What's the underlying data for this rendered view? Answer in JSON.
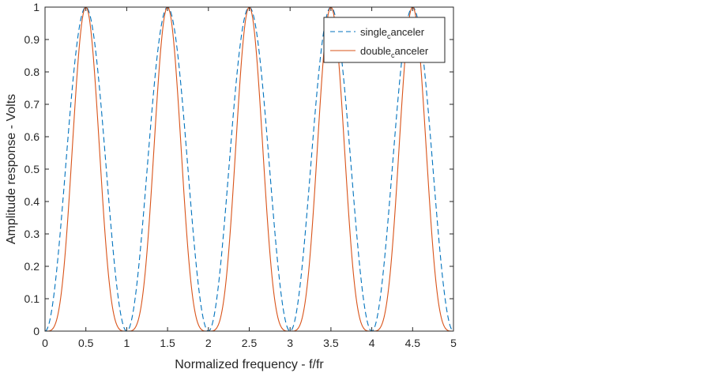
{
  "chart_data": {
    "type": "line",
    "xlabel": "Normalized frequency - f/fr",
    "ylabel": "Amplitude response - Volts",
    "xlim": [
      0,
      5
    ],
    "ylim": [
      0,
      1
    ],
    "x_ticks": [
      "0",
      "0.5",
      "1",
      "1.5",
      "2",
      "2.5",
      "3",
      "3.5",
      "4",
      "4.5",
      "5"
    ],
    "y_ticks": [
      "0",
      "0.1",
      "0.2",
      "0.3",
      "0.4",
      "0.5",
      "0.6",
      "0.7",
      "0.8",
      "0.9",
      "1"
    ],
    "grid": false,
    "legend_position": "top-right",
    "series": [
      {
        "name": "single_canceler",
        "legend_parts": [
          "single",
          "c",
          "anceler"
        ],
        "style": "dashed",
        "color": "#0072BD",
        "x": [
          0,
          0.25,
          0.5,
          0.75,
          1,
          1.25,
          1.5,
          1.75,
          2,
          2.25,
          2.5,
          2.75,
          3,
          3.25,
          3.5,
          3.75,
          4,
          4.25,
          4.5,
          4.75,
          5
        ],
        "y": [
          0,
          0.5,
          1,
          0.5,
          0,
          0.5,
          1,
          0.5,
          0,
          0.5,
          1,
          0.5,
          0,
          0.5,
          1,
          0.5,
          0,
          0.5,
          1,
          0.5,
          0
        ]
      },
      {
        "name": "double_canceler",
        "legend_parts": [
          "double",
          "c",
          "anceler"
        ],
        "style": "solid",
        "color": "#D95319",
        "x": [
          0,
          0.25,
          0.5,
          0.75,
          1,
          1.25,
          1.5,
          1.75,
          2,
          2.25,
          2.5,
          2.75,
          3,
          3.25,
          3.5,
          3.75,
          4,
          4.25,
          4.5,
          4.75,
          5
        ],
        "y": [
          0,
          0.25,
          1,
          0.25,
          0,
          0.25,
          1,
          0.25,
          0,
          0.25,
          1,
          0.25,
          0,
          0.25,
          1,
          0.25,
          0,
          0.25,
          1,
          0.25,
          0
        ]
      }
    ]
  }
}
